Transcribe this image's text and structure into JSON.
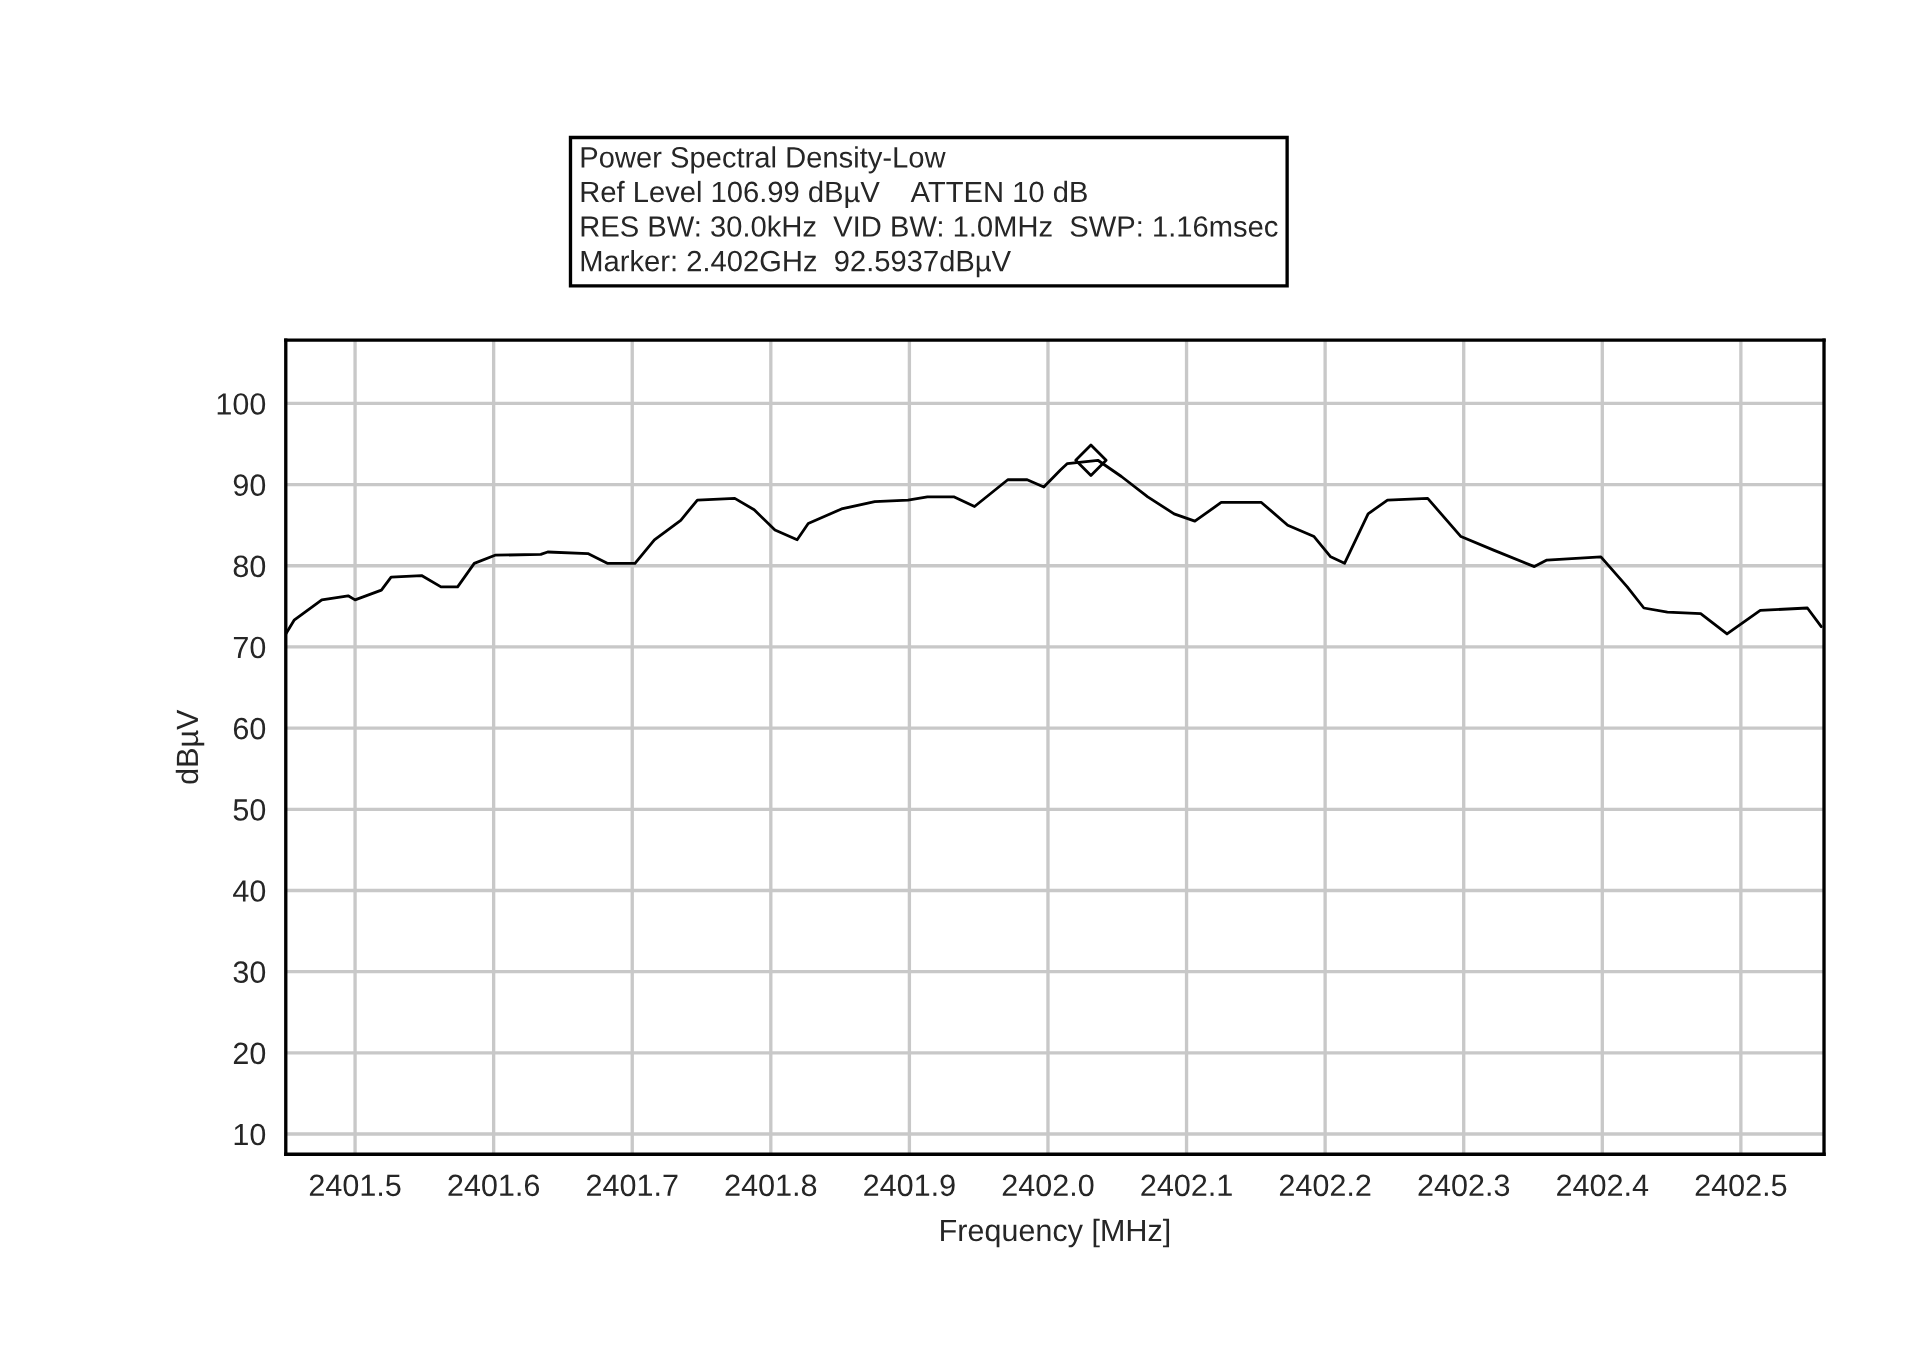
{
  "chart_data": {
    "type": "line",
    "xlabel": "Frequency [MHz]",
    "ylabel": "dBµV",
    "annotations": [
      "Power Spectral Density-Low",
      "Ref Level 106.99 dBµV    ATTEN 10 dB",
      "RES BW: 30.0kHz  VID BW: 1.0MHz  SWP: 1.16msec",
      "Marker: 2.402GHz  92.5937dBµV"
    ],
    "xlim": [
      2401.45,
      2402.56
    ],
    "ylim": [
      7.5,
      107.8
    ],
    "xticks": [
      2401.5,
      2401.6,
      2401.7,
      2401.8,
      2401.9,
      {
        "value": 2402.0,
        "label": "2402.0"
      },
      2402.1,
      2402.2,
      2402.3,
      2402.4,
      2402.5
    ],
    "yticks": [
      10,
      20,
      30,
      40,
      50,
      60,
      70,
      80,
      90,
      100
    ],
    "grid": true,
    "series": [
      {
        "color": "#000000",
        "marker": "none",
        "x": [
          2401.45,
          2401.456,
          2401.476,
          2401.495,
          2401.5,
          2401.519,
          2401.526,
          2401.548,
          2401.562,
          2401.574,
          2401.586,
          2401.601,
          2401.634,
          2401.639,
          2401.668,
          2401.682,
          2401.702,
          2401.716,
          2401.735,
          2401.747,
          2401.774,
          2401.788,
          2401.803,
          2401.819,
          2401.827,
          2401.851,
          2401.875,
          2401.899,
          2401.913,
          2401.932,
          2401.947,
          2401.971,
          2401.985,
          2401.997,
          2402.009,
          2402.014,
          2402.036,
          2402.053,
          2402.072,
          2402.091,
          2402.106,
          2402.125,
          2402.154,
          2402.173,
          2402.192,
          2402.204,
          2402.214,
          2402.231,
          2402.245,
          2402.274,
          2402.298,
          2402.322,
          2402.351,
          2402.36,
          2402.399,
          2402.418,
          2402.43,
          2402.447,
          2402.471,
          2402.49,
          2402.514,
          2402.548,
          2402.558
        ],
        "values": [
          71.6,
          73.3,
          75.8,
          76.3,
          75.8,
          77.0,
          78.6,
          78.8,
          77.4,
          77.4,
          80.3,
          81.3,
          81.4,
          81.7,
          81.5,
          80.3,
          80.3,
          83.2,
          85.6,
          88.1,
          88.3,
          86.9,
          84.4,
          83.2,
          85.2,
          87.0,
          87.9,
          88.1,
          88.5,
          88.5,
          87.3,
          90.6,
          90.6,
          89.7,
          91.8,
          92.6,
          93.0,
          91.0,
          88.5,
          86.4,
          85.5,
          87.8,
          87.8,
          85.0,
          83.6,
          81.1,
          80.3,
          86.4,
          88.1,
          88.3,
          83.6,
          81.9,
          79.9,
          80.7,
          81.1,
          77.4,
          74.8,
          74.3,
          74.1,
          71.6,
          74.5,
          74.8,
          72.5
        ]
      },
      {
        "type": "scatter",
        "color": "#000000",
        "marker": "diamond",
        "x": [
          2402.031
        ],
        "values": [
          93.0
        ]
      }
    ]
  }
}
